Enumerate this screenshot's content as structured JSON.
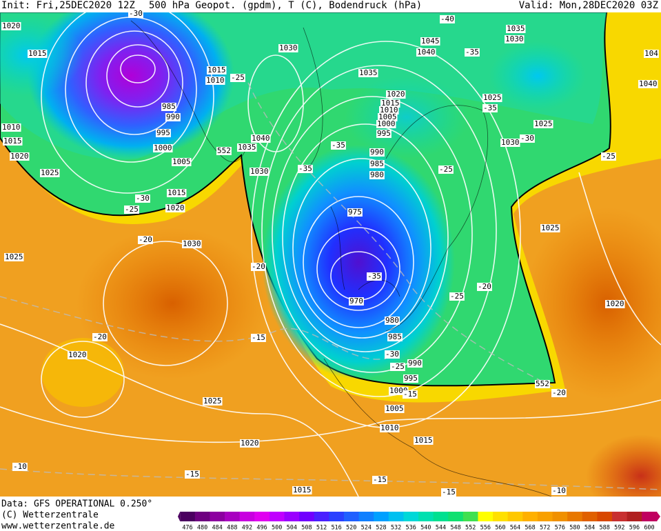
{
  "header": {
    "init": "Init: Fri,25DEC2020 12Z",
    "title": "500 hPa Geopot. (gpdm), T (C), Bodendruck (hPa)",
    "valid": "Valid: Mon,28DEC2020 03Z"
  },
  "footer": {
    "data": "Data: GFS OPERATIONAL 0.250°",
    "copyright": "(C) Wetterzentrale",
    "url": "www.wetterzentrale.de"
  },
  "colorbar": {
    "labels": [
      476,
      480,
      484,
      488,
      492,
      496,
      500,
      504,
      508,
      512,
      516,
      520,
      524,
      528,
      532,
      536,
      540,
      544,
      548,
      552,
      556,
      560,
      564,
      568,
      572,
      576,
      580,
      584,
      588,
      592,
      596,
      600
    ],
    "colors": [
      "#4b0060",
      "#6e0080",
      "#8c00a0",
      "#a800c0",
      "#c800e0",
      "#e000f0",
      "#c000ff",
      "#9a00ff",
      "#7000ff",
      "#4a20ff",
      "#2a40ff",
      "#2060ff",
      "#1080ff",
      "#00a0ff",
      "#00c0f0",
      "#00d8d8",
      "#00e0b0",
      "#00e090",
      "#10e070",
      "#40e050",
      "#ffff00",
      "#ffe000",
      "#ffc800",
      "#ffb000",
      "#f8a000",
      "#f09000",
      "#e87800",
      "#e06000",
      "#d84800",
      "#c83030",
      "#b02020",
      "#c00060"
    ]
  },
  "isobar_labels": [
    "1020",
    "1015",
    "1030",
    "1015",
    "1010",
    "1035",
    "1045",
    "1040",
    "1035",
    "1030",
    "1025",
    "1025",
    "1030",
    "1020",
    "1015",
    "1010",
    "1005",
    "1000",
    "995",
    "990",
    "985",
    "980",
    "975",
    "970",
    "980",
    "985",
    "990",
    "995",
    "1000",
    "1005",
    "1010",
    "1015",
    "1020",
    "1025",
    "1020",
    "1030",
    "1025",
    "1025",
    "1020",
    "1015",
    "1010",
    "985",
    "990",
    "995",
    "1000",
    "1005",
    "1015",
    "1020",
    "1040",
    "1035",
    "1030",
    "1025",
    "1020",
    "1015",
    "1040",
    "104"
  ],
  "temperature_labels": [
    "-30",
    "-25",
    "-40",
    "-35",
    "-35",
    "-30",
    "-35",
    "-35",
    "-25",
    "-25",
    "-30",
    "-25",
    "-20",
    "-20",
    "-35",
    "-20",
    "-25",
    "-20",
    "-15",
    "-30",
    "-25",
    "-15",
    "-20",
    "-10",
    "-15",
    "-15",
    "-15",
    "-10"
  ],
  "geopotential_labels": [
    "552",
    "552"
  ]
}
